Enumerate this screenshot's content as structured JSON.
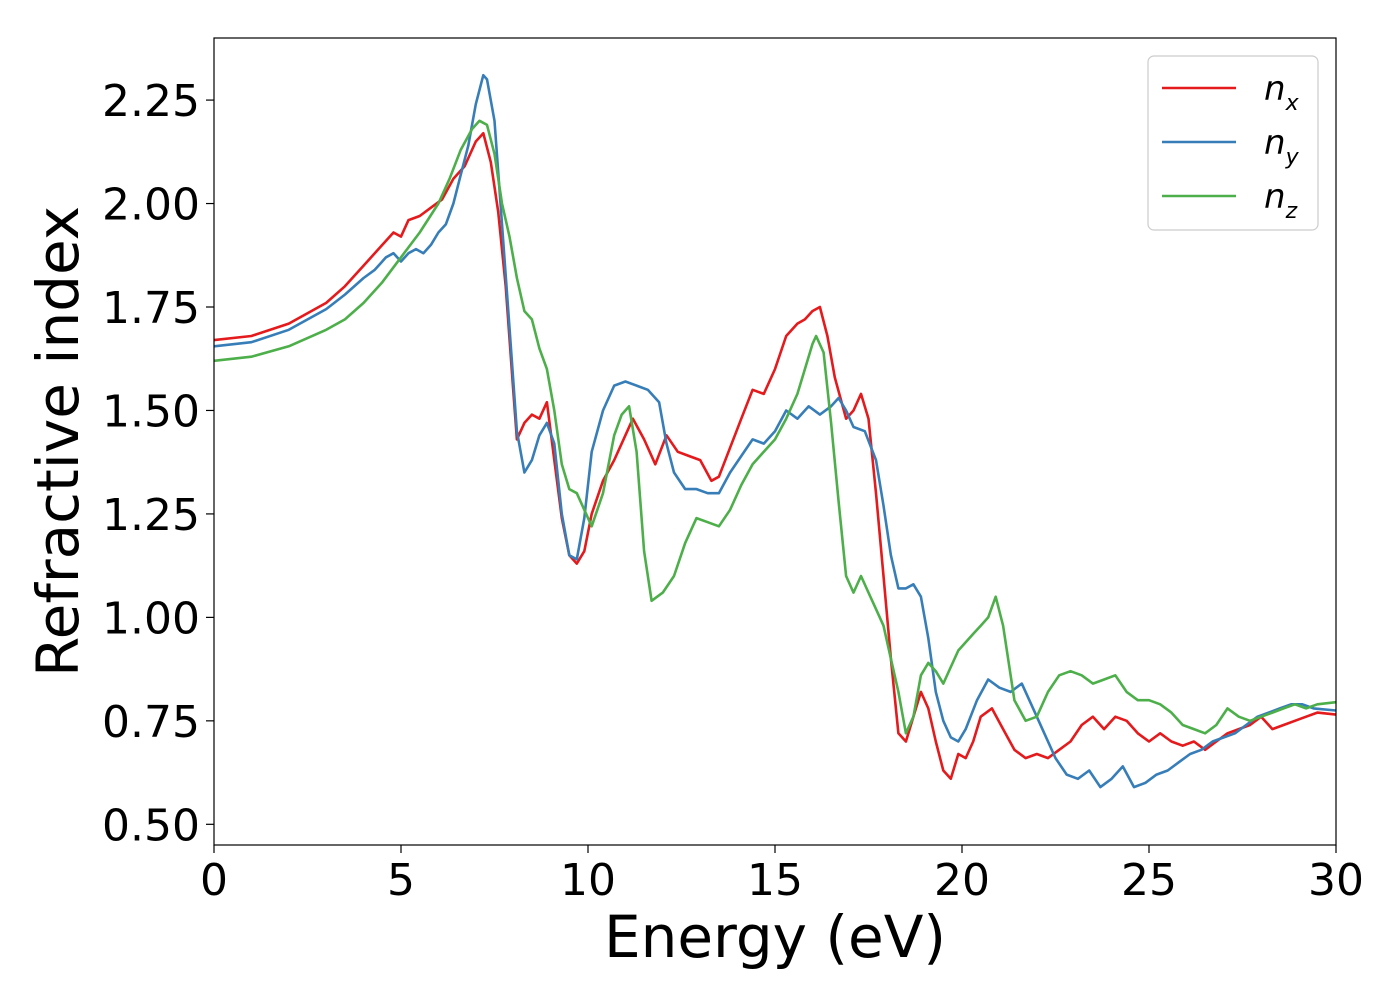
{
  "chart_data": {
    "type": "line",
    "xlabel": "Energy (eV)",
    "ylabel": "Refractive index",
    "xlim": [
      0,
      30
    ],
    "ylim": [
      0.45,
      2.4
    ],
    "xticks": [
      "0",
      "5",
      "10",
      "15",
      "20",
      "25",
      "30"
    ],
    "yticks": [
      "0.50",
      "0.75",
      "1.00",
      "1.25",
      "1.50",
      "1.75",
      "2.00",
      "2.25"
    ],
    "grid": false,
    "legend_position": "top-right",
    "series": [
      {
        "name": "n",
        "subscript": "x",
        "color": "#e41a1c",
        "x": [
          0,
          1,
          2,
          3,
          3.5,
          4,
          4.5,
          4.8,
          5.0,
          5.2,
          5.5,
          5.8,
          6.1,
          6.4,
          6.7,
          7.0,
          7.2,
          7.4,
          7.6,
          7.8,
          8.0,
          8.1,
          8.3,
          8.5,
          8.7,
          8.9,
          9.1,
          9.3,
          9.5,
          9.7,
          9.9,
          10.1,
          10.4,
          10.7,
          11.0,
          11.2,
          11.5,
          11.8,
          12.1,
          12.4,
          12.7,
          13.0,
          13.3,
          13.5,
          13.8,
          14.1,
          14.4,
          14.7,
          15.0,
          15.3,
          15.6,
          15.8,
          16.0,
          16.2,
          16.4,
          16.6,
          16.9,
          17.1,
          17.3,
          17.5,
          17.7,
          17.9,
          18.1,
          18.3,
          18.5,
          18.7,
          18.9,
          19.1,
          19.3,
          19.5,
          19.7,
          19.9,
          20.1,
          20.3,
          20.5,
          20.8,
          21.1,
          21.4,
          21.7,
          22.0,
          22.3,
          22.6,
          22.9,
          23.2,
          23.5,
          23.8,
          24.1,
          24.4,
          24.7,
          25.0,
          25.3,
          25.6,
          25.9,
          26.2,
          26.5,
          26.8,
          27.1,
          27.4,
          27.7,
          28.0,
          28.3,
          28.6,
          28.9,
          29.2,
          29.5,
          30.0
        ],
        "y": [
          1.67,
          1.68,
          1.71,
          1.76,
          1.8,
          1.85,
          1.9,
          1.93,
          1.92,
          1.96,
          1.97,
          1.99,
          2.01,
          2.06,
          2.09,
          2.15,
          2.17,
          2.1,
          1.98,
          1.8,
          1.55,
          1.43,
          1.47,
          1.49,
          1.48,
          1.52,
          1.38,
          1.24,
          1.15,
          1.13,
          1.16,
          1.25,
          1.33,
          1.38,
          1.44,
          1.48,
          1.43,
          1.37,
          1.44,
          1.4,
          1.39,
          1.38,
          1.33,
          1.34,
          1.41,
          1.48,
          1.55,
          1.54,
          1.6,
          1.68,
          1.71,
          1.72,
          1.74,
          1.75,
          1.68,
          1.58,
          1.48,
          1.5,
          1.54,
          1.48,
          1.3,
          1.1,
          0.9,
          0.72,
          0.7,
          0.76,
          0.82,
          0.78,
          0.7,
          0.63,
          0.61,
          0.67,
          0.66,
          0.7,
          0.76,
          0.78,
          0.73,
          0.68,
          0.66,
          0.67,
          0.66,
          0.68,
          0.7,
          0.74,
          0.76,
          0.73,
          0.76,
          0.75,
          0.72,
          0.7,
          0.72,
          0.7,
          0.69,
          0.7,
          0.68,
          0.7,
          0.72,
          0.73,
          0.74,
          0.76,
          0.73,
          0.74,
          0.75,
          0.76,
          0.77,
          0.765
        ]
      },
      {
        "name": "n",
        "subscript": "y",
        "color": "#377eb8",
        "x": [
          0,
          1,
          2,
          3,
          3.5,
          4,
          4.3,
          4.6,
          4.8,
          5.0,
          5.2,
          5.4,
          5.6,
          5.8,
          6.0,
          6.2,
          6.4,
          6.6,
          6.8,
          7.0,
          7.2,
          7.3,
          7.5,
          7.7,
          7.9,
          8.1,
          8.3,
          8.5,
          8.7,
          8.9,
          9.1,
          9.3,
          9.5,
          9.7,
          9.9,
          10.1,
          10.4,
          10.7,
          11.0,
          11.3,
          11.6,
          11.9,
          12.1,
          12.3,
          12.6,
          12.9,
          13.2,
          13.5,
          13.8,
          14.1,
          14.4,
          14.7,
          15.0,
          15.3,
          15.6,
          15.9,
          16.2,
          16.5,
          16.7,
          16.9,
          17.1,
          17.4,
          17.7,
          17.9,
          18.1,
          18.3,
          18.5,
          18.7,
          18.9,
          19.1,
          19.3,
          19.5,
          19.7,
          19.9,
          20.1,
          20.4,
          20.7,
          21.0,
          21.3,
          21.6,
          21.9,
          22.2,
          22.5,
          22.8,
          23.1,
          23.4,
          23.7,
          24.0,
          24.3,
          24.6,
          24.9,
          25.2,
          25.5,
          25.8,
          26.1,
          26.4,
          26.7,
          27.0,
          27.3,
          27.6,
          27.9,
          28.2,
          28.5,
          28.8,
          29.1,
          29.4,
          30.0
        ],
        "y": [
          1.655,
          1.665,
          1.695,
          1.745,
          1.78,
          1.82,
          1.84,
          1.87,
          1.88,
          1.86,
          1.88,
          1.89,
          1.88,
          1.9,
          1.93,
          1.95,
          2.0,
          2.07,
          2.14,
          2.24,
          2.31,
          2.3,
          2.2,
          1.95,
          1.7,
          1.45,
          1.35,
          1.38,
          1.44,
          1.47,
          1.42,
          1.25,
          1.15,
          1.14,
          1.24,
          1.4,
          1.5,
          1.56,
          1.57,
          1.56,
          1.55,
          1.52,
          1.42,
          1.35,
          1.31,
          1.31,
          1.3,
          1.3,
          1.35,
          1.39,
          1.43,
          1.42,
          1.45,
          1.5,
          1.48,
          1.51,
          1.49,
          1.51,
          1.53,
          1.5,
          1.46,
          1.45,
          1.38,
          1.27,
          1.15,
          1.07,
          1.07,
          1.08,
          1.05,
          0.95,
          0.82,
          0.75,
          0.71,
          0.7,
          0.73,
          0.8,
          0.85,
          0.83,
          0.82,
          0.84,
          0.78,
          0.72,
          0.66,
          0.62,
          0.61,
          0.63,
          0.59,
          0.61,
          0.64,
          0.59,
          0.6,
          0.62,
          0.63,
          0.65,
          0.67,
          0.68,
          0.7,
          0.71,
          0.72,
          0.74,
          0.76,
          0.77,
          0.78,
          0.79,
          0.79,
          0.78,
          0.775
        ]
      },
      {
        "name": "n",
        "subscript": "z",
        "color": "#4daf4a",
        "x": [
          0,
          1,
          2,
          3,
          3.5,
          4,
          4.5,
          5.0,
          5.5,
          6.0,
          6.3,
          6.6,
          6.9,
          7.1,
          7.3,
          7.5,
          7.7,
          7.9,
          8.1,
          8.3,
          8.5,
          8.7,
          8.9,
          9.1,
          9.3,
          9.5,
          9.7,
          9.9,
          10.1,
          10.4,
          10.7,
          10.9,
          11.1,
          11.3,
          11.5,
          11.7,
          12.0,
          12.3,
          12.6,
          12.9,
          13.2,
          13.5,
          13.8,
          14.1,
          14.4,
          14.7,
          15.0,
          15.3,
          15.6,
          15.8,
          16.0,
          16.1,
          16.3,
          16.5,
          16.7,
          16.9,
          17.1,
          17.3,
          17.5,
          17.7,
          17.9,
          18.1,
          18.3,
          18.5,
          18.7,
          18.9,
          19.1,
          19.3,
          19.5,
          19.7,
          19.9,
          20.1,
          20.3,
          20.5,
          20.7,
          20.9,
          21.1,
          21.4,
          21.7,
          22.0,
          22.3,
          22.6,
          22.9,
          23.2,
          23.5,
          23.8,
          24.1,
          24.4,
          24.7,
          25.0,
          25.3,
          25.6,
          25.9,
          26.2,
          26.5,
          26.8,
          27.1,
          27.4,
          27.7,
          28.0,
          28.3,
          28.6,
          28.9,
          29.2,
          29.5,
          30.0
        ],
        "y": [
          1.62,
          1.63,
          1.655,
          1.695,
          1.72,
          1.76,
          1.81,
          1.87,
          1.93,
          2.0,
          2.06,
          2.13,
          2.18,
          2.2,
          2.19,
          2.12,
          2.0,
          1.92,
          1.82,
          1.74,
          1.72,
          1.65,
          1.6,
          1.5,
          1.37,
          1.31,
          1.3,
          1.26,
          1.22,
          1.3,
          1.44,
          1.49,
          1.51,
          1.4,
          1.16,
          1.04,
          1.06,
          1.1,
          1.18,
          1.24,
          1.23,
          1.22,
          1.26,
          1.32,
          1.37,
          1.4,
          1.43,
          1.48,
          1.54,
          1.6,
          1.66,
          1.68,
          1.64,
          1.47,
          1.28,
          1.1,
          1.06,
          1.1,
          1.06,
          1.02,
          0.98,
          0.9,
          0.82,
          0.72,
          0.76,
          0.86,
          0.89,
          0.87,
          0.84,
          0.88,
          0.92,
          0.94,
          0.96,
          0.98,
          1.0,
          1.05,
          0.98,
          0.8,
          0.75,
          0.76,
          0.82,
          0.86,
          0.87,
          0.86,
          0.84,
          0.85,
          0.86,
          0.82,
          0.8,
          0.8,
          0.79,
          0.77,
          0.74,
          0.73,
          0.72,
          0.74,
          0.78,
          0.76,
          0.75,
          0.76,
          0.77,
          0.78,
          0.79,
          0.78,
          0.79,
          0.795
        ]
      }
    ]
  }
}
